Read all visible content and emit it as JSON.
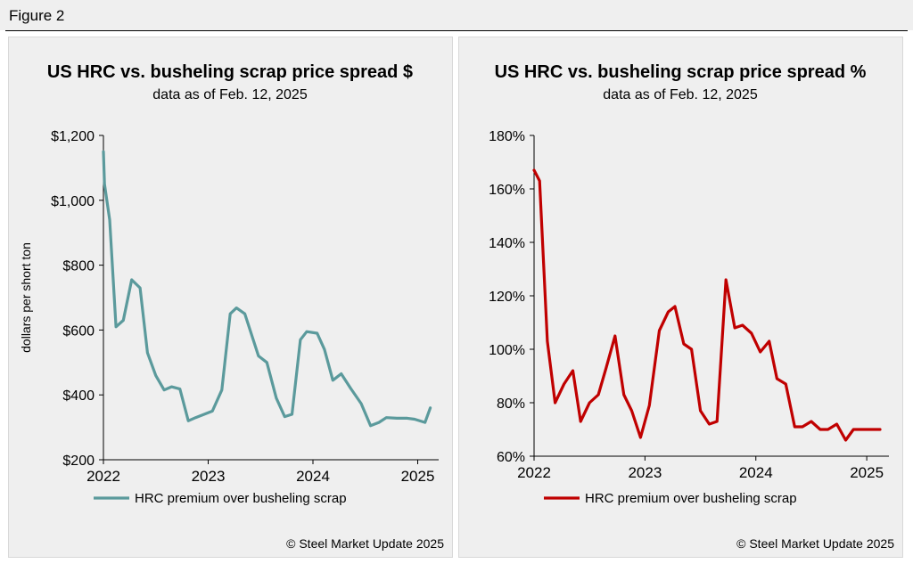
{
  "figure_label": "Figure 2",
  "chart_data": [
    {
      "type": "line",
      "title": "US HRC vs. busheling scrap price spread $",
      "subtitle": "data as of Feb. 12, 2025",
      "ylabel": "dollars per short ton",
      "ylim": [
        200,
        1200
      ],
      "yticks": [
        200,
        400,
        600,
        800,
        1000,
        1200
      ],
      "ytick_labels": [
        "$200",
        "$400",
        "$600",
        "$800",
        "$1,000",
        "$1,200"
      ],
      "xlim": [
        2022.0,
        2025.2
      ],
      "xticks": [
        2022,
        2023,
        2024,
        2025
      ],
      "xtick_labels": [
        "2022",
        "2023",
        "2024",
        "2025"
      ],
      "series": [
        {
          "name": "HRC premium over busheling scrap",
          "color": "#5b9a9c",
          "x": [
            2022.0,
            2022.01,
            2022.06,
            2022.12,
            2022.19,
            2022.27,
            2022.35,
            2022.42,
            2022.5,
            2022.58,
            2022.65,
            2022.73,
            2022.81,
            2022.88,
            2023.04,
            2023.13,
            2023.21,
            2023.27,
            2023.35,
            2023.48,
            2023.56,
            2023.65,
            2023.73,
            2023.8,
            2023.88,
            2023.94,
            2024.04,
            2024.11,
            2024.19,
            2024.27,
            2024.36,
            2024.46,
            2024.55,
            2024.63,
            2024.7,
            2024.8,
            2024.9,
            2024.97,
            2025.07,
            2025.12
          ],
          "values": [
            1150,
            1050,
            940,
            610,
            630,
            755,
            730,
            530,
            460,
            415,
            425,
            418,
            320,
            330,
            350,
            415,
            650,
            668,
            650,
            520,
            500,
            390,
            333,
            340,
            570,
            595,
            590,
            540,
            445,
            465,
            420,
            373,
            305,
            315,
            330,
            328,
            328,
            325,
            315,
            360
          ]
        }
      ],
      "legend": "bottom",
      "source": "© Steel Market Update 2025"
    },
    {
      "type": "line",
      "title": "US HRC vs. busheling scrap price spread %",
      "subtitle": "data as of Feb. 12, 2025",
      "ylabel": "",
      "ylim": [
        60,
        180
      ],
      "yticks": [
        60,
        80,
        100,
        120,
        140,
        160,
        180
      ],
      "ytick_labels": [
        "60%",
        "80%",
        "100%",
        "120%",
        "140%",
        "160%",
        "180%"
      ],
      "xlim": [
        2022.0,
        2025.2
      ],
      "xticks": [
        2022,
        2023,
        2024,
        2025
      ],
      "xtick_labels": [
        "2022",
        "2023",
        "2024",
        "2025"
      ],
      "series": [
        {
          "name": "HRC premium over busheling scrap",
          "color": "#c00000",
          "x": [
            2022.0,
            2022.05,
            2022.12,
            2022.19,
            2022.27,
            2022.35,
            2022.42,
            2022.5,
            2022.58,
            2022.65,
            2022.73,
            2022.81,
            2022.88,
            2022.96,
            2023.04,
            2023.13,
            2023.21,
            2023.27,
            2023.35,
            2023.42,
            2023.5,
            2023.58,
            2023.65,
            2023.73,
            2023.81,
            2023.88,
            2023.96,
            2024.04,
            2024.12,
            2024.19,
            2024.27,
            2024.35,
            2024.42,
            2024.5,
            2024.58,
            2024.65,
            2024.73,
            2024.81,
            2024.88,
            2024.96,
            2025.04,
            2025.12
          ],
          "values": [
            167,
            163,
            103,
            80,
            87,
            92,
            73,
            80,
            83,
            93,
            105,
            83,
            77,
            67,
            79,
            107,
            114,
            116,
            102,
            100,
            77,
            72,
            73,
            126,
            108,
            109,
            106,
            99,
            103,
            89,
            87,
            71,
            71,
            73,
            70,
            70,
            72,
            66,
            70,
            70,
            70,
            70
          ]
        }
      ],
      "legend": "bottom",
      "source": "© Steel Market Update 2025"
    }
  ]
}
